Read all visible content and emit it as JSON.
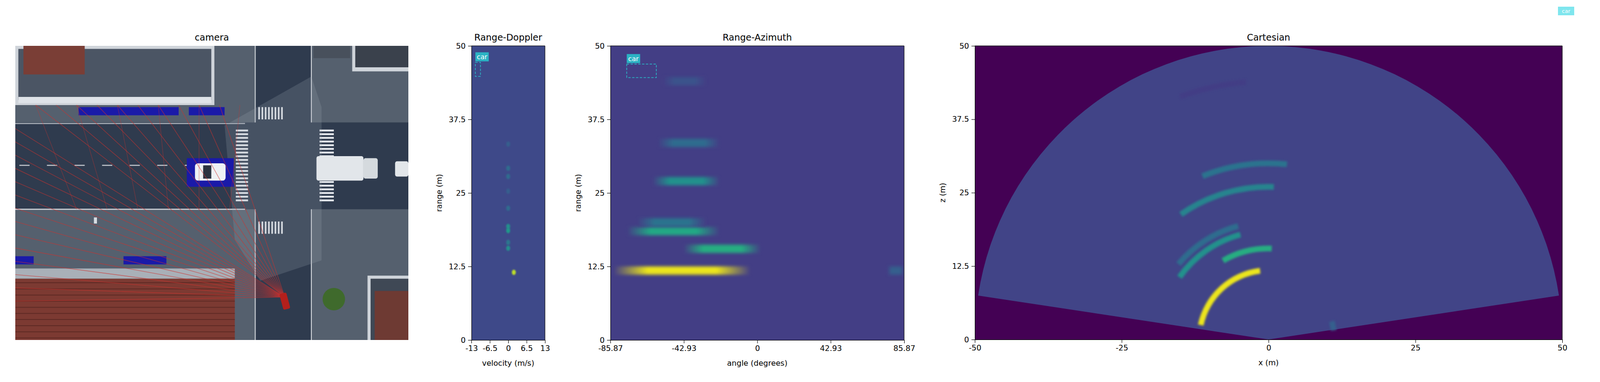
{
  "chart_data": [
    {
      "type": "image",
      "title": "camera"
    },
    {
      "type": "heatmap",
      "title": "Range-Doppler",
      "xlabel": "velocity (m/s)",
      "ylabel": "range (m)",
      "xlim": [
        -13,
        13
      ],
      "ylim": [
        0,
        50
      ],
      "xticks": [
        -13,
        -6.5,
        0,
        6.5,
        13
      ],
      "yticks": [
        0,
        12.5,
        25,
        37.5,
        50
      ],
      "zlim": [
        0,
        1
      ],
      "background": 0.22,
      "points": [
        {
          "velocity": 2,
          "range": 11.5,
          "intensity": 0.9
        },
        {
          "velocity": 0,
          "range": 15.6,
          "intensity": 0.5
        },
        {
          "velocity": 0,
          "range": 16.6,
          "intensity": 0.4
        },
        {
          "velocity": 0,
          "range": 18.6,
          "intensity": 0.55
        },
        {
          "velocity": 0,
          "range": 19.3,
          "intensity": 0.5
        },
        {
          "velocity": 0,
          "range": 22.4,
          "intensity": 0.35
        },
        {
          "velocity": 0,
          "range": 25.3,
          "intensity": 0.3
        },
        {
          "velocity": 0,
          "range": 27.8,
          "intensity": 0.35
        },
        {
          "velocity": 0,
          "range": 29.2,
          "intensity": 0.35
        },
        {
          "velocity": 0,
          "range": 33.3,
          "intensity": 0.3
        }
      ],
      "annotations": [
        {
          "text": "car",
          "color": "#2bb3c4",
          "x": [
            -11.6,
            -9.8
          ],
          "y": [
            44.8,
            47.2
          ]
        }
      ]
    },
    {
      "type": "heatmap",
      "title": "Range-Azimuth",
      "xlabel": "angle (degrees)",
      "ylabel": "range (m)",
      "xlim": [
        -85.87,
        85.87
      ],
      "ylim": [
        0,
        50
      ],
      "xticks": [
        -85.87,
        -42.93,
        0,
        42.93,
        85.87
      ],
      "yticks": [
        0,
        12.5,
        25,
        37.5,
        50
      ],
      "zlim": [
        0,
        1
      ],
      "background": 0.18,
      "stripes": [
        {
          "range": 11.8,
          "angle_min": -84,
          "angle_max": -4,
          "intensity": 0.97
        },
        {
          "range": 11.8,
          "angle_min": 76,
          "angle_max": 85.87,
          "intensity": 0.3
        },
        {
          "range": 15.5,
          "angle_min": -43,
          "angle_max": 2,
          "intensity": 0.62
        },
        {
          "range": 18.5,
          "angle_min": -76,
          "angle_max": -22,
          "intensity": 0.6
        },
        {
          "range": 20,
          "angle_min": -70,
          "angle_max": -30,
          "intensity": 0.38
        },
        {
          "range": 27,
          "angle_min": -61,
          "angle_max": -22,
          "intensity": 0.5
        },
        {
          "range": 33.5,
          "angle_min": -58,
          "angle_max": -22,
          "intensity": 0.35
        },
        {
          "range": 44,
          "angle_min": -55,
          "angle_max": -30,
          "intensity": 0.25
        }
      ],
      "annotations": [
        {
          "text": "car",
          "color": "#2bb3c4",
          "x": [
            -76.3,
            -59
          ],
          "y": [
            44.6,
            46.9
          ]
        }
      ]
    },
    {
      "type": "polar_heatmap",
      "title": "Cartesian",
      "xlabel": "x (m)",
      "ylabel": "z (m)",
      "xlim": [
        -50,
        50
      ],
      "ylim": [
        0,
        50
      ],
      "xticks": [
        -50,
        -25,
        0,
        25,
        50
      ],
      "yticks": [
        0,
        12.5,
        25,
        37.5,
        50
      ],
      "zlim": [
        0,
        1
      ],
      "background": 0.2,
      "fov": [
        -81.4,
        81.4
      ],
      "max_range": 50,
      "arcs": [
        {
          "range": 11.8,
          "angle_min": -78,
          "angle_max": -7,
          "intensity": 0.97
        },
        {
          "range": 11.2,
          "angle_min": 74,
          "angle_max": 82,
          "intensity": 0.3
        },
        {
          "range": 15.5,
          "angle_min": -30,
          "angle_max": 2,
          "intensity": 0.62
        },
        {
          "range": 18.5,
          "angle_min": -55,
          "angle_max": -15,
          "intensity": 0.5
        },
        {
          "range": 20,
          "angle_min": -50,
          "angle_max": -15,
          "intensity": 0.35
        },
        {
          "range": 26,
          "angle_min": -35,
          "angle_max": 2,
          "intensity": 0.45
        },
        {
          "range": 30,
          "angle_min": -22,
          "angle_max": 6,
          "intensity": 0.38
        },
        {
          "range": 44,
          "angle_min": -20,
          "angle_max": -5,
          "intensity": 0.18
        }
      ],
      "series": [
        {
          "name": "car",
          "color": "#7fe6ee"
        }
      ],
      "legend": "upper right"
    }
  ]
}
